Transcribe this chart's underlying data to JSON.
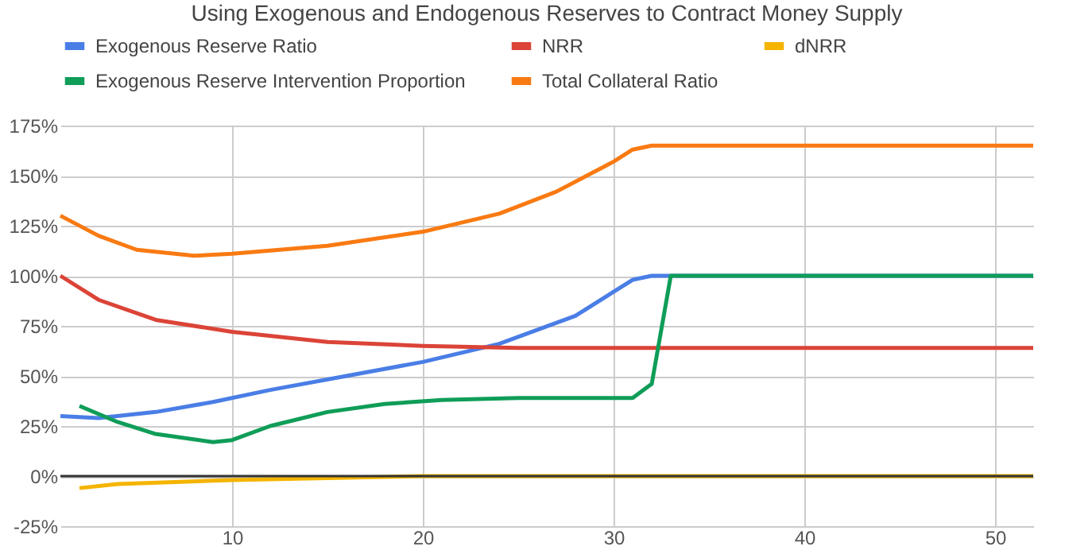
{
  "chart_data": {
    "type": "line",
    "title": "Using Exogenous and Endogenous Reserves to Contract Money Supply",
    "xlim": [
      1,
      52
    ],
    "xticks": [
      10,
      20,
      30,
      40,
      50
    ],
    "ylim": [
      -25,
      175
    ],
    "yticks": [
      {
        "value": -25,
        "label": "-25%"
      },
      {
        "value": 0,
        "label": "0%"
      },
      {
        "value": 25,
        "label": "25%"
      },
      {
        "value": 50,
        "label": "50%"
      },
      {
        "value": 75,
        "label": "75%"
      },
      {
        "value": 100,
        "label": "100%"
      },
      {
        "value": 125,
        "label": "125%"
      },
      {
        "value": 150,
        "label": "150%"
      },
      {
        "value": 175,
        "label": "175%"
      }
    ],
    "grid": true,
    "legend": "top",
    "marker": "none",
    "line_style": "solid",
    "ref_lines": [
      {
        "axis": "y",
        "value": 0,
        "color": "#333333"
      }
    ],
    "series": [
      {
        "name": "Exogenous Reserve Ratio",
        "color": "#4a7ee6",
        "x": [
          1,
          3,
          6,
          9,
          12,
          16,
          20,
          24,
          28,
          30,
          31,
          32,
          52
        ],
        "values": [
          30,
          29,
          32,
          37,
          43,
          50,
          57,
          66,
          80,
          92,
          98,
          100,
          100
        ]
      },
      {
        "name": "NRR",
        "color": "#db4437",
        "x": [
          1,
          3,
          6,
          10,
          15,
          20,
          25,
          52
        ],
        "values": [
          100,
          88,
          78,
          72,
          67,
          65,
          64,
          64
        ]
      },
      {
        "name": "dNRR",
        "color": "#f4b400",
        "x": [
          2,
          4,
          7,
          10,
          15,
          20,
          52
        ],
        "values": [
          -6,
          -4,
          -3,
          -2,
          -1,
          0,
          0
        ]
      },
      {
        "name": "Exogenous Reserve Intervention Proportion",
        "color": "#0f9d58",
        "x": [
          2,
          4,
          6,
          9,
          10,
          12,
          15,
          18,
          21,
          25,
          31,
          32,
          33,
          52
        ],
        "values": [
          35,
          27,
          21,
          17,
          18,
          25,
          32,
          36,
          38,
          39,
          39,
          46,
          100,
          100
        ]
      },
      {
        "name": "Total Collateral Ratio",
        "color": "#f97a12",
        "x": [
          1,
          3,
          5,
          8,
          10,
          15,
          20,
          24,
          27,
          30,
          31,
          32,
          52
        ],
        "values": [
          130,
          120,
          113,
          110,
          111,
          115,
          122,
          131,
          142,
          157,
          163,
          165,
          165
        ]
      }
    ]
  }
}
